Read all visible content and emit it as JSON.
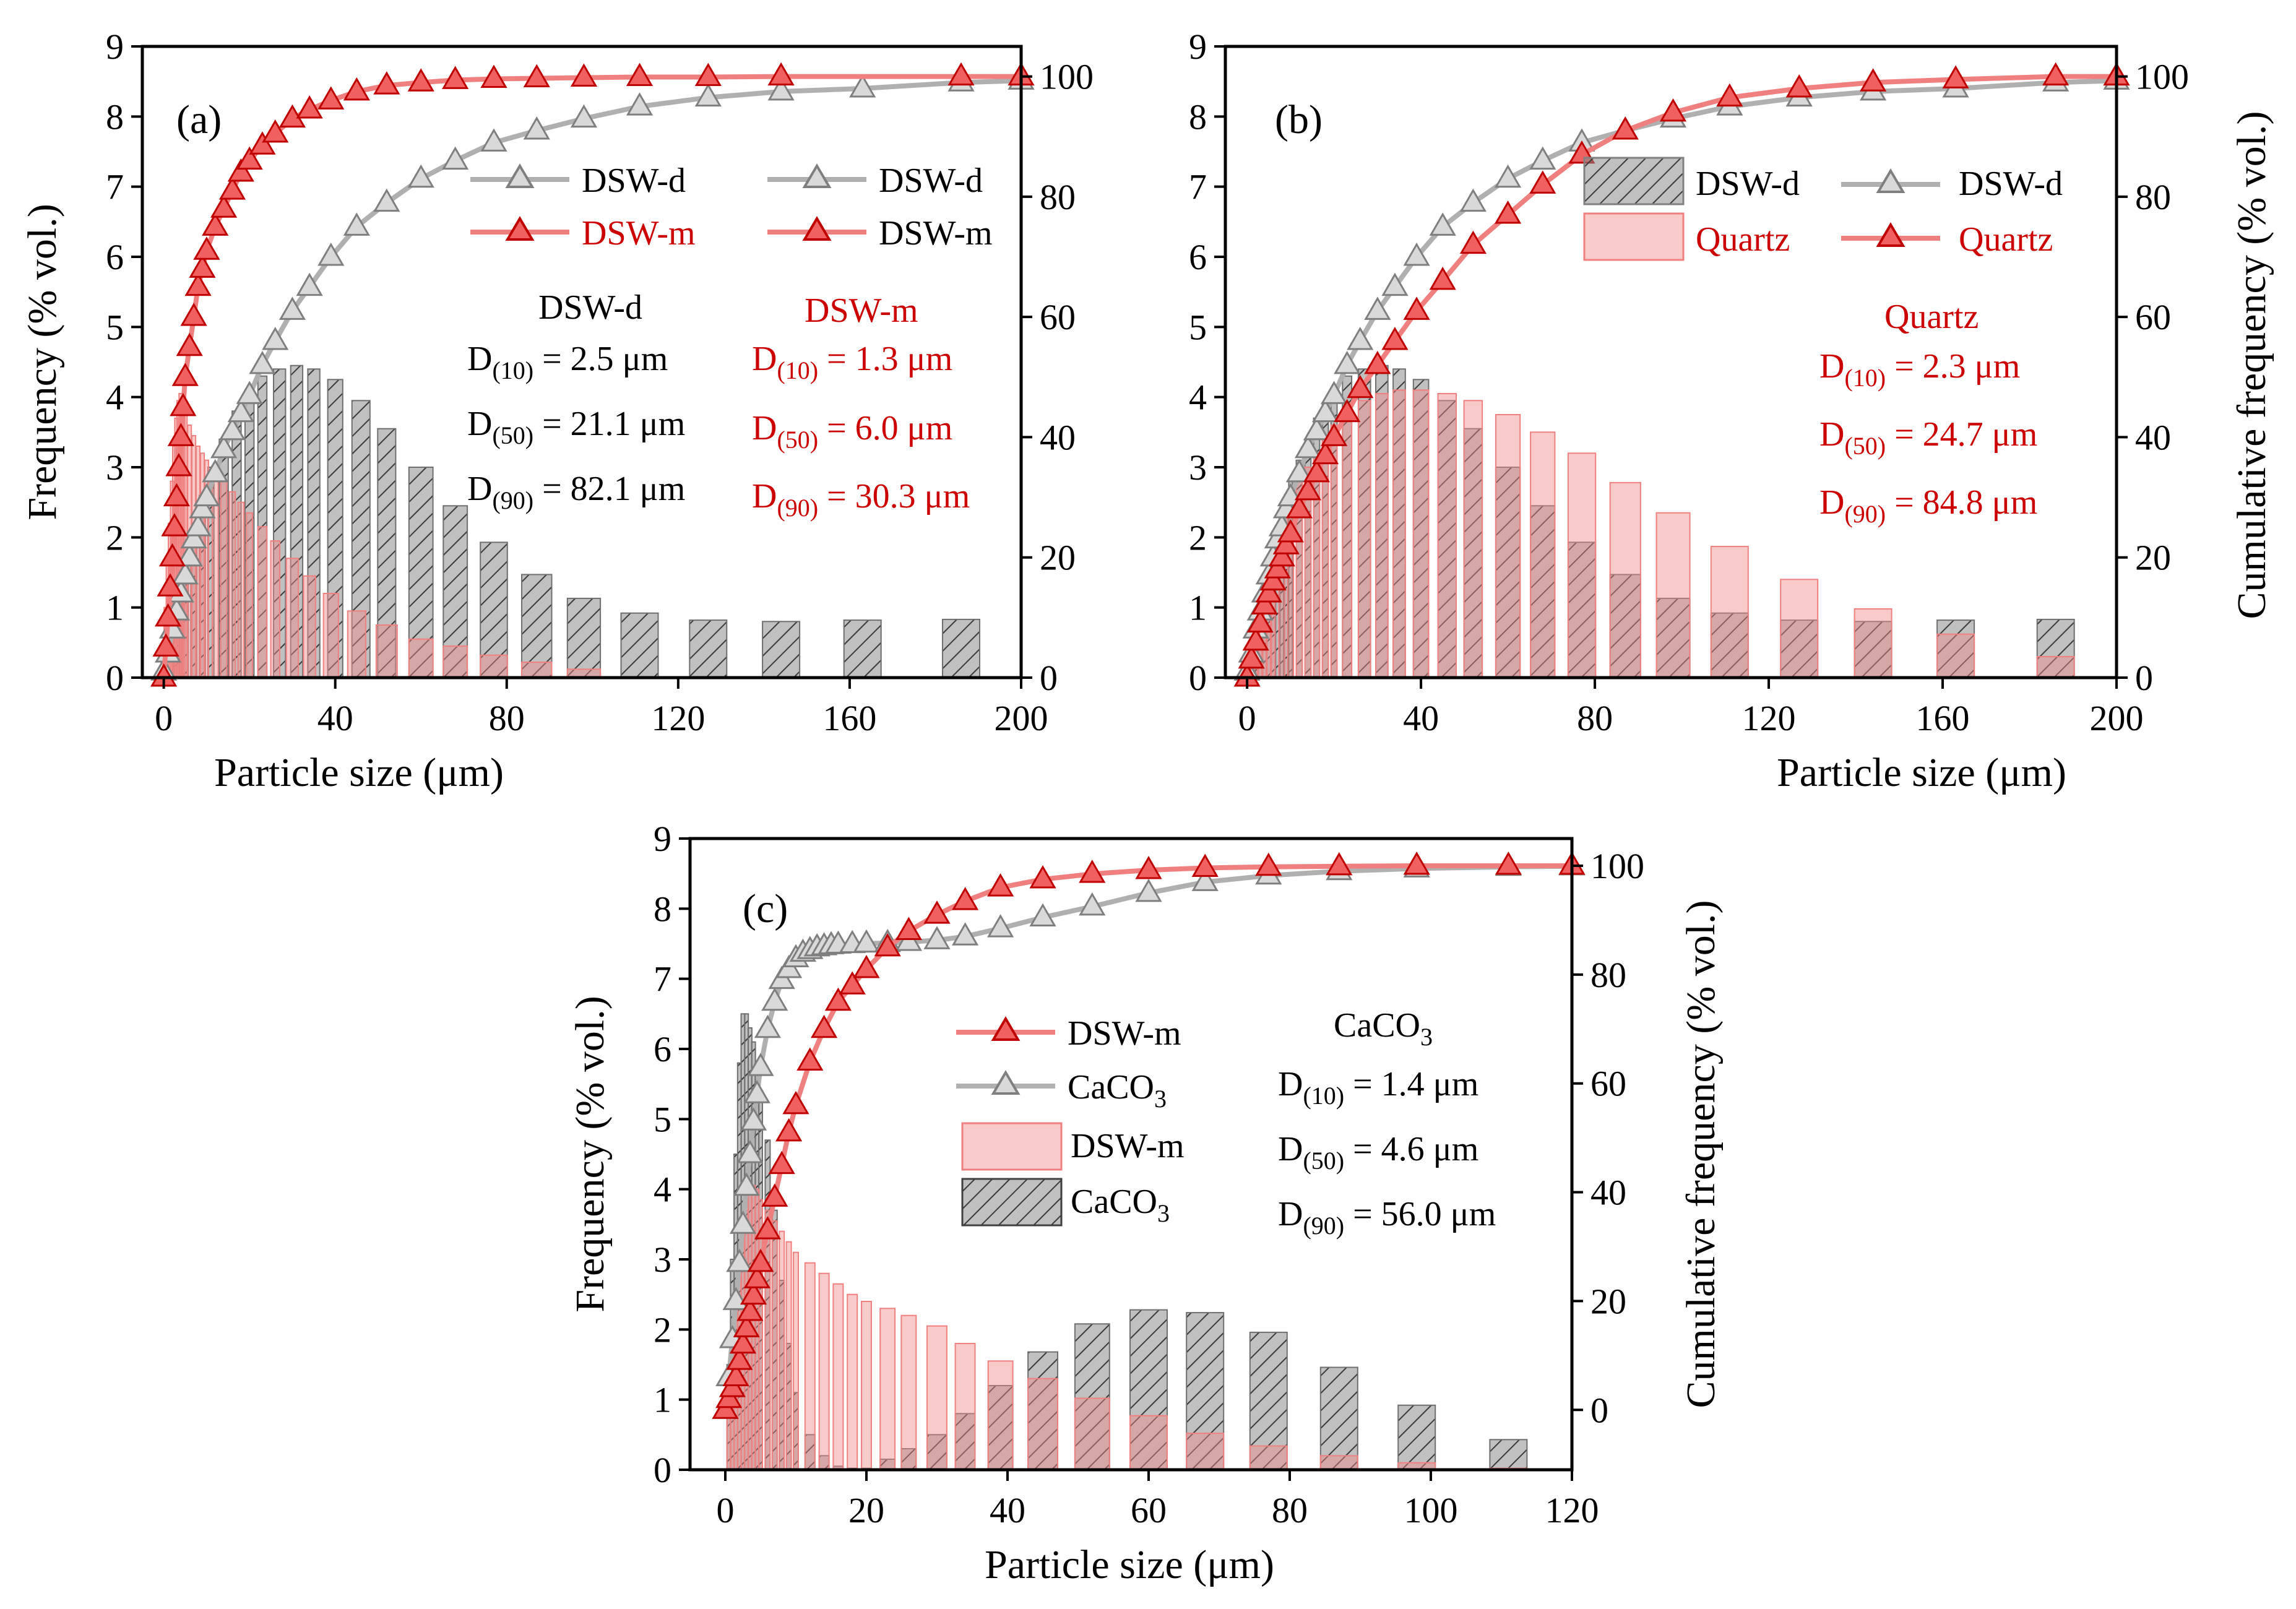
{
  "panels": [
    {
      "id": "a",
      "label": "(a)",
      "xlabel": "Particle size (μm)",
      "ylabel": "Frequency (% vol.)",
      "y2label": "",
      "legend": {
        "bars": [
          {
            "label": "DSW-d",
            "color": "#999999",
            "swatch": "line"
          },
          {
            "label": "DSW-m",
            "color": "#e87070",
            "swatch": "line"
          }
        ],
        "lines": [
          {
            "label": "DSW-d",
            "color": "#b0b0b0",
            "text_color": "#000000"
          },
          {
            "label": "DSW-m",
            "color": "#f08080",
            "text_color": "#cc0000"
          }
        ]
      },
      "annotations": [
        {
          "title": "DSW-d",
          "color": "#000000",
          "d10": "= 2.5 μm",
          "d50": "= 21.1 μm",
          "d90": "= 82.1 μm"
        },
        {
          "title": "DSW-m",
          "color": "#cc0000",
          "d10": "= 1.3 μm",
          "d50": "= 6.0 μm",
          "d90": "= 30.3 μm"
        }
      ]
    },
    {
      "id": "b",
      "label": "(b)",
      "xlabel": "Particle size (μm)",
      "ylabel": "",
      "y2label": "Cumulative frequency (% vol.)",
      "legend": {
        "bars": [
          {
            "label": "DSW-d",
            "color": "#808080",
            "swatch": "box",
            "text_color": "#000000"
          },
          {
            "label": "Quartz",
            "color": "#f4a6a6",
            "swatch": "box",
            "text_color": "#cc0000"
          }
        ],
        "lines": [
          {
            "label": "DSW-d",
            "color": "#b0b0b0",
            "text_color": "#000000"
          },
          {
            "label": "Quartz",
            "color": "#f08080",
            "text_color": "#cc0000"
          }
        ]
      },
      "annotations": [
        {
          "title": "Quartz",
          "color": "#cc0000",
          "d10": "= 2.3 μm",
          "d50": "= 24.7 μm",
          "d90": "= 84.8 μm"
        }
      ]
    },
    {
      "id": "c",
      "label": "(c)",
      "xlabel": "Particle size (μm)",
      "ylabel": "Frequency (% vol.)",
      "y2label": "Cumulative frequency (% vol.)",
      "legend": {
        "lines": [
          {
            "label": "DSW-m",
            "color": "#f08080",
            "text_color": "#000000"
          },
          {
            "label": "CaCO",
            "sub": "3",
            "color": "#b0b0b0",
            "text_color": "#000000"
          }
        ],
        "bars": [
          {
            "label": "DSW-m",
            "color": "#f4a6a6",
            "swatch": "box",
            "text_color": "#000000"
          },
          {
            "label": "CaCO",
            "sub": "3",
            "color": "#404040",
            "swatch": "box",
            "text_color": "#000000"
          }
        ]
      },
      "annotations": [
        {
          "title": "CaCO",
          "title_sub": "3",
          "color": "#000000",
          "d10": "= 1.4 μm",
          "d50": "= 4.6 μm",
          "d90": "= 56.0 μm"
        }
      ]
    }
  ],
  "d_labels": {
    "d": "D",
    "s10": "(10)",
    "s50": "(50)",
    "s90": "(90)"
  },
  "chart_data": [
    {
      "type": "bar",
      "panel": "a",
      "xlim": [
        -5,
        200
      ],
      "ylim": [
        0,
        9
      ],
      "y2lim": [
        0,
        105
      ],
      "xticks": [
        0,
        40,
        80,
        120,
        160,
        200
      ],
      "yticks": [
        0,
        1,
        2,
        3,
        4,
        5,
        6,
        7,
        8,
        9
      ],
      "y2ticks": [
        0,
        20,
        40,
        60,
        80,
        100
      ],
      "bar_series": [
        {
          "name": "DSW-d",
          "style": "grey-hatched",
          "x": [
            3,
            5,
            7,
            9,
            11,
            14,
            17,
            20,
            23,
            27,
            31,
            35,
            40,
            46,
            52,
            60,
            68,
            77,
            87,
            98,
            111,
            127,
            144,
            163,
            186
          ],
          "values": [
            1.0,
            1.6,
            2.1,
            2.6,
            3.0,
            3.4,
            3.8,
            4.1,
            4.3,
            4.4,
            4.45,
            4.4,
            4.25,
            3.95,
            3.55,
            3.0,
            2.45,
            1.93,
            1.47,
            1.13,
            0.92,
            0.82,
            0.8,
            0.82,
            0.83
          ]
        },
        {
          "name": "DSW-m",
          "style": "red-translucent",
          "x": [
            0.5,
            1,
            1.5,
            2,
            2.5,
            3,
            3.5,
            4,
            4.5,
            5,
            6,
            7,
            8,
            9,
            10,
            12,
            14,
            16,
            18,
            20,
            23,
            26,
            30,
            34,
            39,
            45,
            52,
            60,
            68,
            77,
            87,
            98
          ],
          "values": [
            1.0,
            1.6,
            2.2,
            2.8,
            3.3,
            3.7,
            3.95,
            4.05,
            4.0,
            3.85,
            3.6,
            3.45,
            3.3,
            3.2,
            3.1,
            2.95,
            2.8,
            2.65,
            2.5,
            2.35,
            2.15,
            1.95,
            1.7,
            1.45,
            1.2,
            0.95,
            0.75,
            0.55,
            0.45,
            0.32,
            0.22,
            0.12
          ]
        }
      ],
      "line_series": [
        {
          "name": "DSW-d",
          "color": "#b0b0b0",
          "x": [
            0,
            1,
            2,
            3,
            4,
            5,
            6,
            7,
            8,
            9,
            10,
            12,
            14,
            16,
            18,
            20,
            23,
            26,
            30,
            34,
            39,
            45,
            52,
            60,
            68,
            77,
            87,
            98,
            111,
            127,
            144,
            163,
            186,
            200
          ],
          "values": [
            1,
            4,
            8,
            11,
            14,
            17,
            20,
            23,
            25,
            28,
            30,
            34,
            38,
            41,
            44,
            47,
            52,
            56,
            61,
            65,
            70,
            75,
            79,
            83,
            86,
            89,
            91,
            93,
            95,
            96.5,
            97.5,
            98,
            99,
            99.3
          ]
        },
        {
          "name": "DSW-m",
          "color": "#f08080",
          "x": [
            0,
            0.5,
            1,
            1.5,
            2,
            2.5,
            3,
            3.5,
            4,
            4.5,
            5,
            6,
            7,
            8,
            9,
            10,
            12,
            14,
            16,
            18,
            20,
            23,
            26,
            30,
            34,
            39,
            45,
            52,
            60,
            68,
            77,
            87,
            98,
            111,
            127,
            144,
            186,
            200
          ],
          "values": [
            0,
            5,
            10,
            15,
            20,
            25,
            30,
            35,
            40,
            45,
            50,
            55,
            60,
            65,
            68,
            71,
            75,
            78,
            81,
            84,
            86,
            88.5,
            90.5,
            93,
            94.5,
            96,
            97.5,
            98.5,
            99,
            99.4,
            99.6,
            99.7,
            99.8,
            99.9,
            99.9,
            100,
            100,
            100
          ]
        }
      ]
    },
    {
      "type": "bar",
      "panel": "b",
      "xlim": [
        -5,
        200
      ],
      "ylim": [
        0,
        9
      ],
      "y2lim": [
        0,
        105
      ],
      "xticks": [
        0,
        40,
        80,
        120,
        160,
        200
      ],
      "yticks": [
        0,
        1,
        2,
        3,
        4,
        5,
        6,
        7,
        8,
        9
      ],
      "y2ticks": [
        0,
        20,
        40,
        60,
        80,
        100
      ],
      "bar_series": [
        {
          "name": "DSW-d",
          "style": "grey-hatched",
          "x": [
            0.5,
            1,
            1.5,
            2,
            3,
            4,
            5,
            6,
            7,
            8,
            9,
            10,
            12,
            14,
            16,
            18,
            20,
            23,
            27,
            31,
            35,
            40,
            46,
            52,
            60,
            68,
            77,
            87,
            98,
            111,
            127,
            144,
            163,
            186
          ],
          "values": [
            0.3,
            0.5,
            0.7,
            0.9,
            1.1,
            1.4,
            1.6,
            1.9,
            2.1,
            2.4,
            2.6,
            2.8,
            3.1,
            3.4,
            3.7,
            3.9,
            4.1,
            4.3,
            4.4,
            4.45,
            4.4,
            4.25,
            3.95,
            3.55,
            3.0,
            2.45,
            1.93,
            1.47,
            1.13,
            0.92,
            0.82,
            0.8,
            0.82,
            0.83
          ]
        },
        {
          "name": "Quartz",
          "style": "red-translucent",
          "x": [
            1,
            2,
            3,
            4,
            5,
            6,
            8,
            10,
            12,
            14,
            16,
            18,
            20,
            23,
            27,
            31,
            35,
            40,
            46,
            52,
            60,
            68,
            77,
            87,
            98,
            111,
            127,
            144,
            163,
            186
          ],
          "values": [
            0.3,
            0.6,
            0.9,
            1.2,
            1.5,
            1.8,
            2.2,
            2.5,
            2.8,
            3.0,
            3.2,
            3.4,
            3.6,
            3.8,
            3.95,
            4.05,
            4.1,
            4.1,
            4.05,
            3.95,
            3.75,
            3.5,
            3.2,
            2.78,
            2.35,
            1.87,
            1.4,
            0.98,
            0.62,
            0.3
          ]
        }
      ],
      "line_series": [
        {
          "name": "DSW-d",
          "color": "#b0b0b0",
          "x": [
            0,
            1,
            2,
            3,
            4,
            5,
            6,
            7,
            8,
            9,
            10,
            12,
            14,
            16,
            18,
            20,
            23,
            26,
            30,
            34,
            39,
            45,
            52,
            60,
            68,
            77,
            87,
            98,
            111,
            127,
            144,
            163,
            186,
            200
          ],
          "values": [
            1,
            4,
            8,
            11,
            14,
            17,
            20,
            23,
            25,
            28,
            30,
            34,
            38,
            41,
            44,
            47,
            52,
            56,
            61,
            65,
            70,
            75,
            79,
            83,
            86,
            89,
            91,
            93,
            95,
            96.5,
            97.5,
            98,
            99,
            99.3
          ]
        },
        {
          "name": "Quartz",
          "color": "#f08080",
          "x": [
            0,
            1,
            2,
            3,
            4,
            5,
            6,
            7,
            8,
            9,
            10,
            12,
            14,
            16,
            18,
            20,
            23,
            26,
            30,
            34,
            39,
            45,
            52,
            60,
            68,
            77,
            87,
            98,
            111,
            127,
            144,
            163,
            186,
            200
          ],
          "values": [
            0,
            3,
            6,
            9,
            12,
            14,
            16,
            18,
            20,
            22,
            24,
            28,
            31,
            34,
            37,
            40,
            44,
            48,
            52,
            56,
            61,
            66,
            72,
            77,
            82,
            87,
            91,
            94,
            96.5,
            98,
            99,
            99.5,
            100,
            100
          ]
        }
      ]
    },
    {
      "type": "bar",
      "panel": "c",
      "xlim": [
        -5,
        120
      ],
      "ylim": [
        0,
        9
      ],
      "y2lim": [
        -11,
        105
      ],
      "xticks": [
        0,
        20,
        40,
        60,
        80,
        100,
        120
      ],
      "yticks": [
        0,
        1,
        2,
        3,
        4,
        5,
        6,
        7,
        8,
        9
      ],
      "y2ticks": [
        0,
        20,
        40,
        60,
        80,
        100
      ],
      "bar_series": [
        {
          "name": "CaCO3",
          "style": "grey-hatched",
          "x": [
            0.5,
            1,
            1.5,
            2,
            2.5,
            3,
            3.5,
            4,
            4.5,
            5,
            6,
            7,
            8,
            9,
            10,
            12,
            14,
            16,
            18,
            20,
            23,
            26,
            30,
            34,
            39,
            45,
            52,
            60,
            68,
            77,
            87,
            98,
            111
          ],
          "values": [
            1.5,
            3.0,
            4.5,
            5.8,
            6.5,
            6.5,
            6.3,
            6.1,
            5.8,
            5.4,
            4.7,
            3.7,
            2.7,
            1.8,
            1.1,
            0.5,
            0.2,
            0.05,
            0.02,
            0.02,
            0.15,
            0.3,
            0.5,
            0.8,
            1.2,
            1.68,
            2.08,
            2.28,
            2.24,
            1.96,
            1.46,
            0.92,
            0.43
          ]
        },
        {
          "name": "DSW-m",
          "style": "red-translucent",
          "x": [
            0.5,
            1,
            1.5,
            2,
            2.5,
            3,
            3.5,
            4,
            4.5,
            5,
            6,
            7,
            8,
            9,
            10,
            12,
            14,
            16,
            18,
            20,
            23,
            26,
            30,
            34,
            39,
            45,
            52,
            60,
            68,
            77,
            87,
            98,
            111
          ],
          "values": [
            1.0,
            1.6,
            2.2,
            2.8,
            3.3,
            3.7,
            3.95,
            4.05,
            4.0,
            3.85,
            3.7,
            3.55,
            3.4,
            3.25,
            3.1,
            2.95,
            2.8,
            2.65,
            2.5,
            2.4,
            2.3,
            2.2,
            2.05,
            1.8,
            1.55,
            1.3,
            1.02,
            0.77,
            0.52,
            0.34,
            0.2,
            0.1,
            0.02
          ]
        }
      ],
      "line_series": [
        {
          "name": "CaCO3",
          "color": "#b0b0b0",
          "x": [
            0,
            0.5,
            1,
            1.5,
            2,
            2.5,
            3,
            3.5,
            4,
            4.5,
            5,
            6,
            7,
            8,
            9,
            10,
            11,
            12,
            13,
            14,
            15,
            16,
            18,
            20,
            23,
            26,
            30,
            34,
            39,
            45,
            52,
            60,
            68,
            77,
            87,
            98,
            111,
            120
          ],
          "values": [
            0,
            6,
            13,
            20,
            27,
            34,
            41,
            47,
            53,
            58,
            63,
            70,
            75,
            79,
            81,
            83,
            84,
            84.5,
            85,
            85.2,
            85.4,
            85.5,
            85.6,
            85.7,
            85.8,
            86,
            86.3,
            87,
            88.5,
            90.5,
            92.5,
            95,
            97,
            98.2,
            99,
            99.5,
            99.8,
            99.9
          ]
        },
        {
          "name": "DSW-m",
          "color": "#f08080",
          "x": [
            0,
            0.5,
            1,
            1.5,
            2,
            2.5,
            3,
            3.5,
            4,
            4.5,
            5,
            6,
            7,
            8,
            9,
            10,
            12,
            14,
            16,
            18,
            20,
            23,
            26,
            30,
            34,
            39,
            45,
            52,
            60,
            68,
            77,
            87,
            98,
            111,
            120
          ],
          "values": [
            0,
            2,
            4,
            6,
            9,
            12,
            15,
            18,
            21,
            24,
            27,
            33,
            39,
            45,
            51,
            56,
            64,
            70,
            75,
            78,
            81,
            85,
            88,
            91,
            93.5,
            96,
            97.5,
            98.5,
            99.2,
            99.6,
            99.8,
            99.9,
            100,
            100,
            100
          ]
        }
      ]
    }
  ]
}
